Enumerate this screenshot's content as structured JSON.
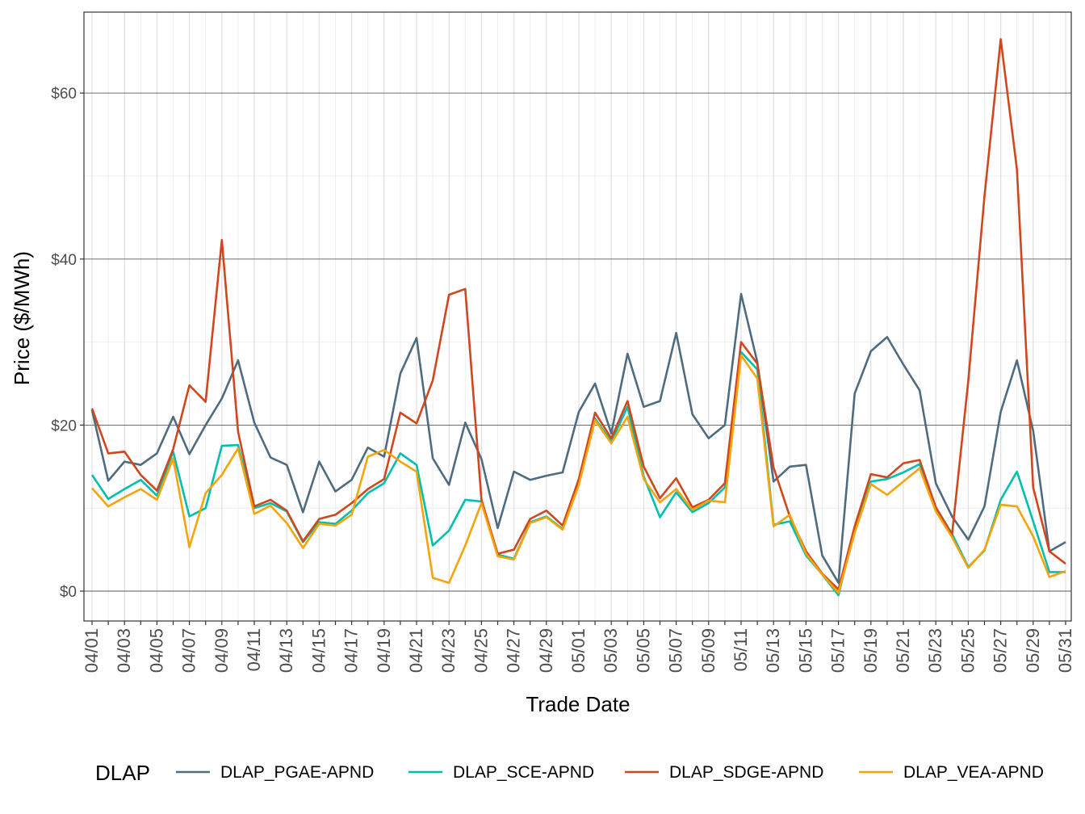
{
  "chart_data": {
    "type": "line",
    "xlabel": "Trade Date",
    "ylabel": "Price ($/MWh)",
    "y_tick_labels": [
      "$0",
      "$20",
      "$40",
      "$60"
    ],
    "y_ticks": [
      0,
      20,
      40,
      60
    ],
    "ylim": [
      -3.5,
      70
    ],
    "x_tick_labels": [
      "04/01",
      "04/03",
      "04/05",
      "04/07",
      "04/09",
      "04/11",
      "04/13",
      "04/15",
      "04/17",
      "04/19",
      "04/21",
      "04/23",
      "04/25",
      "04/27",
      "04/29",
      "05/01",
      "05/03",
      "05/05",
      "05/07",
      "05/09",
      "05/11",
      "05/13",
      "05/15",
      "05/17",
      "05/19",
      "05/21",
      "05/23",
      "05/25",
      "05/27",
      "05/29",
      "05/31"
    ],
    "x": [
      "04/01",
      "04/02",
      "04/03",
      "04/04",
      "04/05",
      "04/06",
      "04/07",
      "04/08",
      "04/09",
      "04/10",
      "04/11",
      "04/12",
      "04/13",
      "04/14",
      "04/15",
      "04/16",
      "04/17",
      "04/18",
      "04/19",
      "04/20",
      "04/21",
      "04/22",
      "04/23",
      "04/24",
      "04/25",
      "04/26",
      "04/27",
      "04/28",
      "04/29",
      "04/30",
      "05/01",
      "05/02",
      "05/03",
      "05/04",
      "05/05",
      "05/06",
      "05/07",
      "05/08",
      "05/09",
      "05/10",
      "05/11",
      "05/12",
      "05/13",
      "05/14",
      "05/15",
      "05/16",
      "05/17",
      "05/18",
      "05/19",
      "05/20",
      "05/21",
      "05/22",
      "05/23",
      "05/24",
      "05/25",
      "05/26",
      "05/27",
      "05/28",
      "05/29",
      "05/30",
      "05/31"
    ],
    "grid": true,
    "legend_title": "DLAP",
    "legend_position": "bottom",
    "series": [
      {
        "name": "DLAP_PGAE-APND",
        "color": "#4e6b7f",
        "values": [
          21.8,
          13.3,
          15.6,
          15.2,
          16.6,
          21.0,
          16.5,
          20.0,
          23.2,
          27.8,
          20.3,
          16.1,
          15.2,
          9.5,
          15.6,
          12.0,
          13.4,
          17.3,
          16.2,
          26.2,
          30.5,
          16.0,
          12.8,
          20.3,
          15.9,
          7.6,
          14.4,
          13.4,
          13.9,
          14.3,
          21.6,
          25.0,
          19.0,
          28.6,
          22.2,
          22.9,
          31.1,
          21.3,
          18.4,
          20.0,
          35.8,
          27.6,
          13.2,
          15.0,
          15.2,
          4.3,
          1.0,
          23.8,
          28.9,
          30.6,
          27.3,
          24.2,
          13.0,
          9.0,
          6.2,
          10.2,
          21.6,
          27.8,
          19.3,
          4.8,
          5.9
        ]
      },
      {
        "name": "DLAP_SCE-APND",
        "color": "#00bfae",
        "values": [
          14.0,
          11.1,
          12.3,
          13.4,
          11.5,
          16.8,
          9.0,
          10.0,
          17.5,
          17.6,
          10.0,
          10.6,
          9.6,
          5.9,
          8.3,
          8.1,
          9.7,
          11.8,
          13.0,
          16.6,
          15.2,
          5.5,
          7.3,
          11.0,
          10.8,
          4.4,
          3.9,
          8.3,
          9.0,
          7.5,
          13.0,
          20.8,
          18.0,
          22.2,
          13.8,
          8.9,
          11.9,
          9.5,
          10.6,
          12.5,
          28.8,
          26.7,
          8.0,
          8.4,
          4.3,
          2.0,
          -0.5,
          7.5,
          13.2,
          13.5,
          14.3,
          15.3,
          10.1,
          6.9,
          2.9,
          4.9,
          11.0,
          14.4,
          8.4,
          2.3,
          2.3
        ]
      },
      {
        "name": "DLAP_SDGE-APND",
        "color": "#d0471d",
        "values": [
          22.0,
          16.6,
          16.8,
          14.0,
          12.1,
          17.1,
          24.8,
          22.8,
          42.3,
          19.2,
          10.2,
          11.0,
          9.7,
          6.0,
          8.7,
          9.2,
          10.6,
          12.3,
          13.5,
          21.5,
          20.2,
          25.4,
          35.7,
          36.4,
          11.0,
          4.5,
          5.0,
          8.7,
          9.7,
          7.9,
          13.5,
          21.5,
          18.4,
          22.9,
          15.0,
          11.2,
          13.6,
          10.1,
          11.0,
          13.0,
          30.0,
          27.4,
          14.9,
          9.0,
          4.8,
          2.1,
          0.2,
          7.8,
          14.1,
          13.7,
          15.4,
          15.8,
          10.1,
          6.8,
          25.3,
          47.6,
          66.5,
          50.8,
          12.5,
          4.8,
          3.3
        ]
      },
      {
        "name": "DLAP_VEA-APND",
        "color": "#f5a40b",
        "values": [
          12.4,
          10.2,
          11.3,
          12.3,
          11.0,
          16.0,
          5.3,
          11.8,
          14.0,
          17.2,
          9.3,
          10.3,
          8.2,
          5.2,
          8.1,
          7.9,
          9.2,
          16.2,
          17.0,
          15.6,
          14.4,
          1.6,
          1.0,
          5.5,
          10.6,
          4.2,
          3.8,
          8.2,
          8.9,
          7.4,
          12.8,
          20.6,
          17.8,
          21.0,
          13.5,
          10.7,
          12.3,
          9.8,
          10.9,
          10.7,
          28.4,
          25.6,
          7.8,
          9.2,
          4.5,
          2.0,
          -0.2,
          7.0,
          12.9,
          11.6,
          13.2,
          14.8,
          9.6,
          6.5,
          2.8,
          5.0,
          10.4,
          10.2,
          6.6,
          1.7,
          2.4
        ]
      }
    ]
  }
}
